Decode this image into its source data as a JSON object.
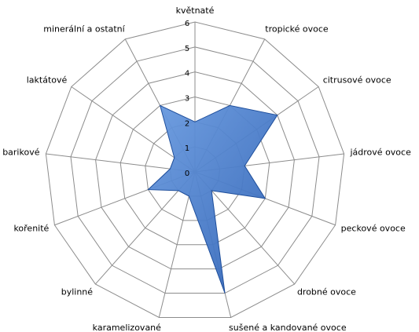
{
  "chart_data": {
    "type": "radar",
    "categories": [
      "květnaté",
      "tropické ovoce",
      "citrusové ovoce",
      "jádrové ovoce",
      "peckové ovoce",
      "drobné ovoce",
      "sušené a kandované ovoce",
      "karamelizované",
      "bylinné",
      "kořenité",
      "barikové",
      "laktátové",
      "minerální a ostatní"
    ],
    "values": [
      2,
      3,
      4,
      2,
      3,
      1,
      5,
      1,
      1,
      2,
      1,
      1,
      3
    ],
    "color": "#4a7fd0",
    "ylim": [
      0,
      6
    ],
    "yticks": [
      0,
      1,
      2,
      3,
      4,
      5,
      6
    ],
    "grid": true
  }
}
